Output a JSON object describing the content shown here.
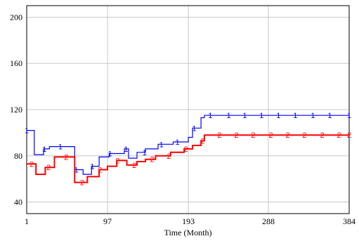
{
  "chart_data": {
    "type": "line",
    "title": "",
    "xlabel": "Time (Month)",
    "ylabel": "",
    "xlim": [
      1,
      384
    ],
    "ylim": [
      30,
      210
    ],
    "x_ticks": [
      "1",
      "97",
      "193",
      "288",
      "384"
    ],
    "x_tick_values": [
      1,
      97,
      193,
      288,
      384
    ],
    "y_ticks": [
      "40",
      "80",
      "120",
      "160",
      "200"
    ],
    "y_tick_values": [
      40,
      80,
      120,
      160,
      200
    ],
    "grid": true,
    "legend": "none",
    "series": [
      {
        "name": "",
        "marker": "1",
        "color": "#0000ff",
        "step_points": [
          [
            1,
            102
          ],
          [
            10,
            102
          ],
          [
            10,
            81
          ],
          [
            21,
            81
          ],
          [
            21,
            86
          ],
          [
            28,
            86
          ],
          [
            28,
            88
          ],
          [
            58,
            88
          ],
          [
            58,
            68
          ],
          [
            68,
            68
          ],
          [
            68,
            64
          ],
          [
            78,
            64
          ],
          [
            78,
            71
          ],
          [
            87,
            71
          ],
          [
            87,
            79
          ],
          [
            99,
            79
          ],
          [
            99,
            82
          ],
          [
            117,
            82
          ],
          [
            117,
            86
          ],
          [
            122,
            86
          ],
          [
            122,
            78
          ],
          [
            132,
            78
          ],
          [
            132,
            83
          ],
          [
            142,
            83
          ],
          [
            142,
            86
          ],
          [
            157,
            86
          ],
          [
            157,
            90
          ],
          [
            175,
            90
          ],
          [
            175,
            92
          ],
          [
            193,
            92
          ],
          [
            193,
            96
          ],
          [
            198,
            96
          ],
          [
            198,
            104
          ],
          [
            208,
            104
          ],
          [
            208,
            113
          ],
          [
            212,
            113
          ],
          [
            212,
            115
          ],
          [
            384,
            115
          ]
        ],
        "markers_x": [
          1,
          22,
          41,
          60,
          79,
          100,
          119,
          141,
          161,
          180,
          200,
          219,
          241,
          260,
          280,
          300,
          320,
          341,
          361,
          384
        ]
      },
      {
        "name": "",
        "marker": "2",
        "color": "#ff0000",
        "step_points": [
          [
            1,
            73
          ],
          [
            12,
            73
          ],
          [
            12,
            64
          ],
          [
            23,
            64
          ],
          [
            23,
            70
          ],
          [
            34,
            70
          ],
          [
            34,
            79
          ],
          [
            58,
            79
          ],
          [
            58,
            57
          ],
          [
            73,
            57
          ],
          [
            73,
            62
          ],
          [
            87,
            62
          ],
          [
            87,
            68
          ],
          [
            97,
            68
          ],
          [
            97,
            71
          ],
          [
            108,
            71
          ],
          [
            108,
            76
          ],
          [
            120,
            76
          ],
          [
            120,
            72
          ],
          [
            132,
            72
          ],
          [
            132,
            75
          ],
          [
            142,
            75
          ],
          [
            142,
            77
          ],
          [
            154,
            77
          ],
          [
            154,
            80
          ],
          [
            172,
            80
          ],
          [
            172,
            83
          ],
          [
            188,
            83
          ],
          [
            188,
            86
          ],
          [
            198,
            86
          ],
          [
            198,
            89
          ],
          [
            208,
            89
          ],
          [
            208,
            93
          ],
          [
            212,
            93
          ],
          [
            212,
            98
          ],
          [
            384,
            98
          ]
        ],
        "markers_x": [
          7,
          27,
          48,
          67,
          88,
          109,
          129,
          150,
          170,
          190,
          210,
          230,
          250,
          270,
          291,
          311,
          331,
          352,
          372,
          384
        ]
      }
    ]
  }
}
